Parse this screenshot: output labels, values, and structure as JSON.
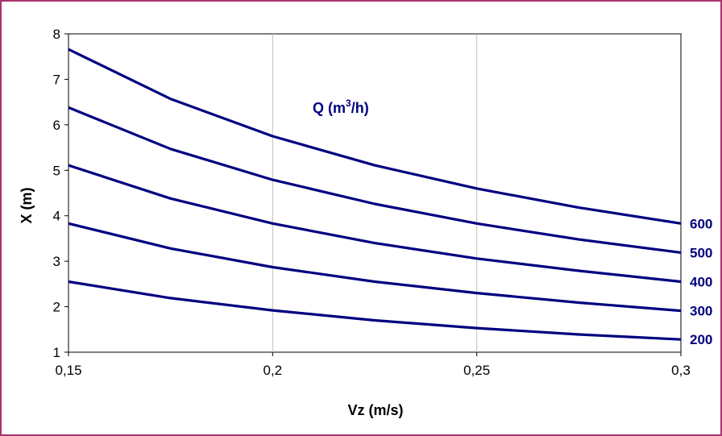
{
  "chart_data": {
    "type": "line",
    "xlabel": "Vz (m/s)",
    "ylabel": "X (m)",
    "annotation": {
      "main": "Q (m",
      "sup": "3",
      "tail": "/h)"
    },
    "xlim": [
      0.15,
      0.3
    ],
    "ylim": [
      1,
      8
    ],
    "x_ticks": [
      0.15,
      0.2,
      0.25,
      0.3
    ],
    "x_tick_labels": [
      "0,15",
      "0,2",
      "0,25",
      "0,3"
    ],
    "y_ticks": [
      1,
      2,
      3,
      4,
      5,
      6,
      7,
      8
    ],
    "y_tick_labels": [
      "1",
      "2",
      "3",
      "4",
      "5",
      "6",
      "7",
      "8"
    ],
    "grid": true,
    "line_color": "#000080",
    "x": [
      0.15,
      0.175,
      0.2,
      0.225,
      0.25,
      0.275,
      0.3
    ],
    "series": [
      {
        "name": "600",
        "values": [
          7.66,
          6.57,
          5.75,
          5.11,
          4.6,
          4.18,
          3.83
        ]
      },
      {
        "name": "500",
        "values": [
          6.38,
          5.47,
          4.79,
          4.26,
          3.83,
          3.48,
          3.19
        ]
      },
      {
        "name": "400",
        "values": [
          5.11,
          4.38,
          3.83,
          3.4,
          3.06,
          2.79,
          2.55
        ]
      },
      {
        "name": "300",
        "values": [
          3.83,
          3.28,
          2.87,
          2.55,
          2.3,
          2.09,
          1.91
        ]
      },
      {
        "name": "200",
        "values": [
          2.55,
          2.19,
          1.92,
          1.7,
          1.53,
          1.39,
          1.28
        ]
      }
    ]
  }
}
